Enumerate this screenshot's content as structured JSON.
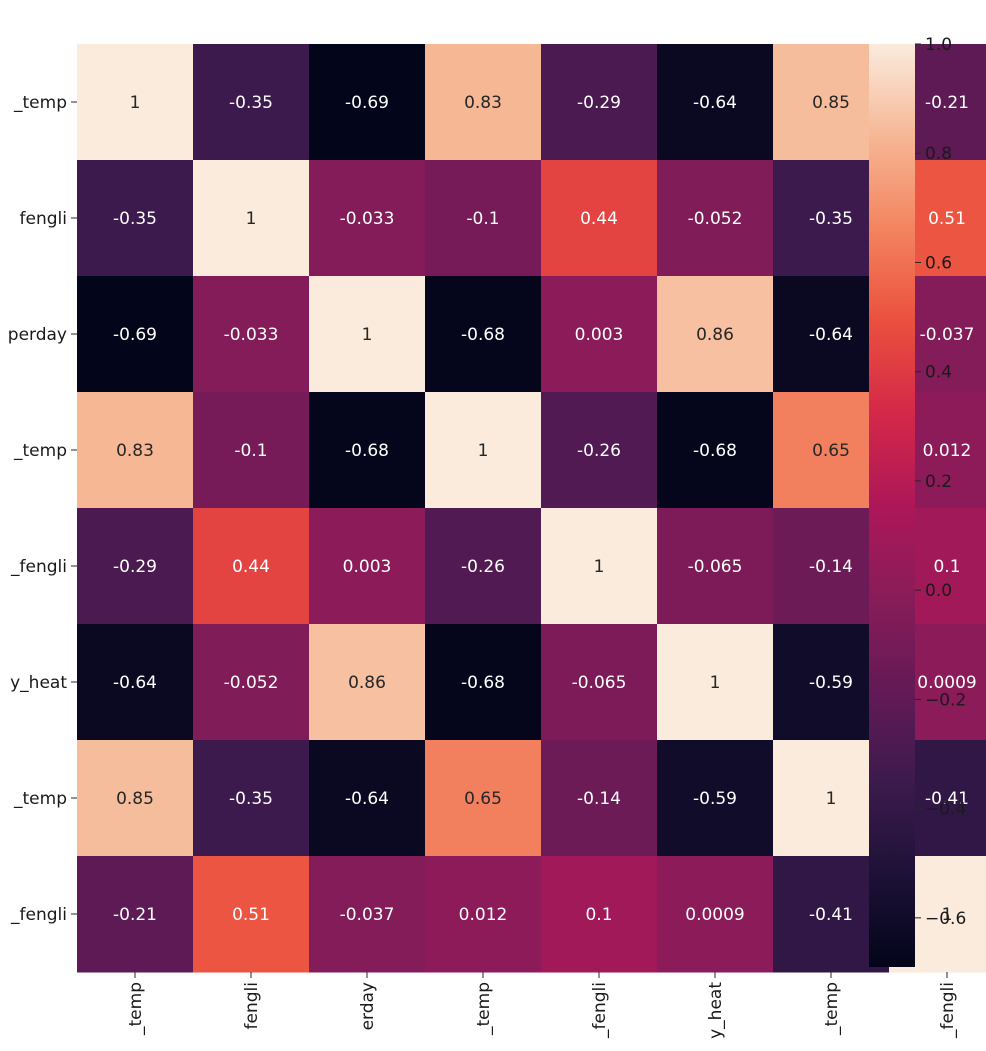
{
  "chart_data": {
    "type": "heatmap",
    "row_labels": [
      "_temp",
      "fengli",
      "perday",
      "_temp",
      "_fengli",
      "y_heat",
      "_temp",
      "_fengli"
    ],
    "col_labels": [
      "_temp",
      "fengli",
      "erday",
      "_temp",
      "_fengli",
      "y_heat",
      "_temp",
      "_fengli"
    ],
    "cells": [
      [
        "1",
        "-0.35",
        "-0.69",
        "0.83",
        "-0.29",
        "-0.64",
        "0.85",
        "-0.21"
      ],
      [
        "-0.35",
        "1",
        "-0.033",
        "-0.1",
        "0.44",
        "-0.052",
        "-0.35",
        "0.51"
      ],
      [
        "-0.69",
        "-0.033",
        "1",
        "-0.68",
        "0.003",
        "0.86",
        "-0.64",
        "-0.037"
      ],
      [
        "0.83",
        "-0.1",
        "-0.68",
        "1",
        "-0.26",
        "-0.68",
        "0.65",
        "0.012"
      ],
      [
        "-0.29",
        "0.44",
        "0.003",
        "-0.26",
        "1",
        "-0.065",
        "-0.14",
        "0.1"
      ],
      [
        "-0.64",
        "-0.052",
        "0.86",
        "-0.68",
        "-0.065",
        "1",
        "-0.59",
        "0.0009"
      ],
      [
        "0.85",
        "-0.35",
        "-0.64",
        "0.65",
        "-0.14",
        "-0.59",
        "1",
        "-0.41"
      ],
      [
        "-0.21",
        "0.51",
        "-0.037",
        "0.012",
        "0.1",
        "0.0009",
        "-0.41",
        "1"
      ]
    ],
    "colormap": "rocket",
    "colorbar": {
      "range": [
        -0.69,
        1.0
      ],
      "ticks": [
        1.0,
        0.8,
        0.6,
        0.4,
        0.2,
        0.0,
        -0.2,
        -0.4,
        -0.6
      ],
      "tick_labels": [
        "1.0",
        "0.8",
        "0.6",
        "0.4",
        "0.2",
        "0.0",
        "−0.2",
        "−0.4",
        "−0.6"
      ]
    },
    "title": "",
    "xlabel": "",
    "ylabel": ""
  }
}
